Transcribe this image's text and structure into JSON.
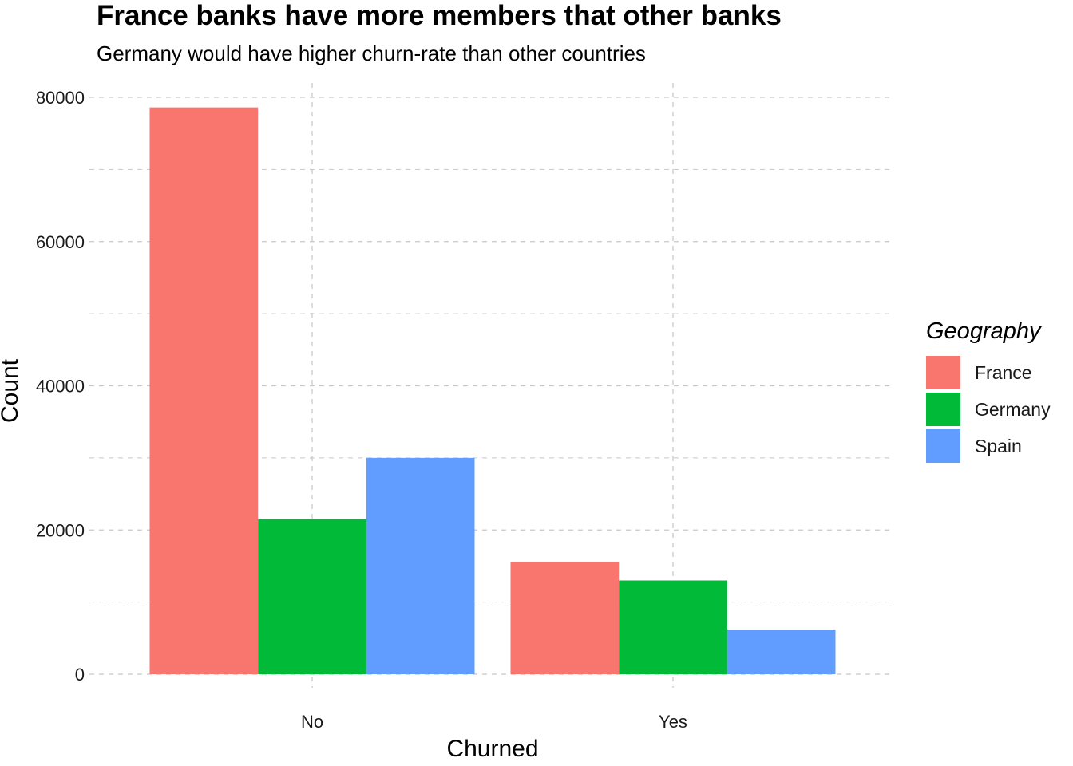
{
  "chart_data": {
    "type": "bar",
    "title": "France banks have more members that other banks",
    "subtitle": "Germany would have higher churn-rate than other countries",
    "xlabel": "Churned",
    "ylabel": "Count",
    "categories": [
      "No",
      "Yes"
    ],
    "series": [
      {
        "name": "France",
        "values": [
          78600,
          15600
        ],
        "color": "#F8766D"
      },
      {
        "name": "Germany",
        "values": [
          21500,
          13000
        ],
        "color": "#00BA38"
      },
      {
        "name": "Spain",
        "values": [
          30000,
          6200
        ],
        "color": "#619CFF"
      }
    ],
    "ylim": [
      0,
      80000
    ],
    "yticks": [
      "0",
      "20000",
      "40000",
      "60000",
      "80000"
    ],
    "legend_title": "Geography",
    "legend_position": "right",
    "grid": true
  }
}
